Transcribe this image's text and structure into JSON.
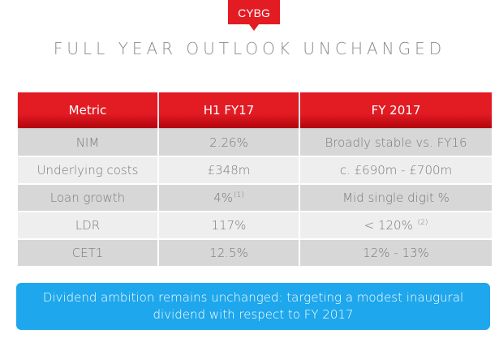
{
  "logo": {
    "text": "CYBG",
    "color": "#e31b23"
  },
  "title": "FULL YEAR OUTLOOK UNCHANGED",
  "table": {
    "headers": [
      "Metric",
      "H1 FY17",
      "FY 2017"
    ],
    "rows": [
      {
        "metric": "NIM",
        "h1": "2.26%",
        "h1_note": "",
        "fy": "Broadly stable vs. FY16",
        "fy_note": ""
      },
      {
        "metric": "Underlying costs",
        "h1": "£348m",
        "h1_note": "",
        "fy": "c. £690m - £700m",
        "fy_note": ""
      },
      {
        "metric": "Loan growth",
        "h1": "4%",
        "h1_note": "(1)",
        "fy": "Mid single digit %",
        "fy_note": ""
      },
      {
        "metric": "LDR",
        "h1": "117%",
        "h1_note": "",
        "fy": "< 120%",
        "fy_note": "(2)"
      },
      {
        "metric": "CET1",
        "h1": "12.5%",
        "h1_note": "",
        "fy": "12% - 13%",
        "fy_note": ""
      }
    ]
  },
  "banner": {
    "line1": "Dividend ambition remains unchanged: targeting a modest inaugural",
    "line2": "dividend with respect to FY 2017"
  },
  "colors": {
    "header_red": "#e31b23",
    "banner_blue": "#1ea7ec"
  }
}
